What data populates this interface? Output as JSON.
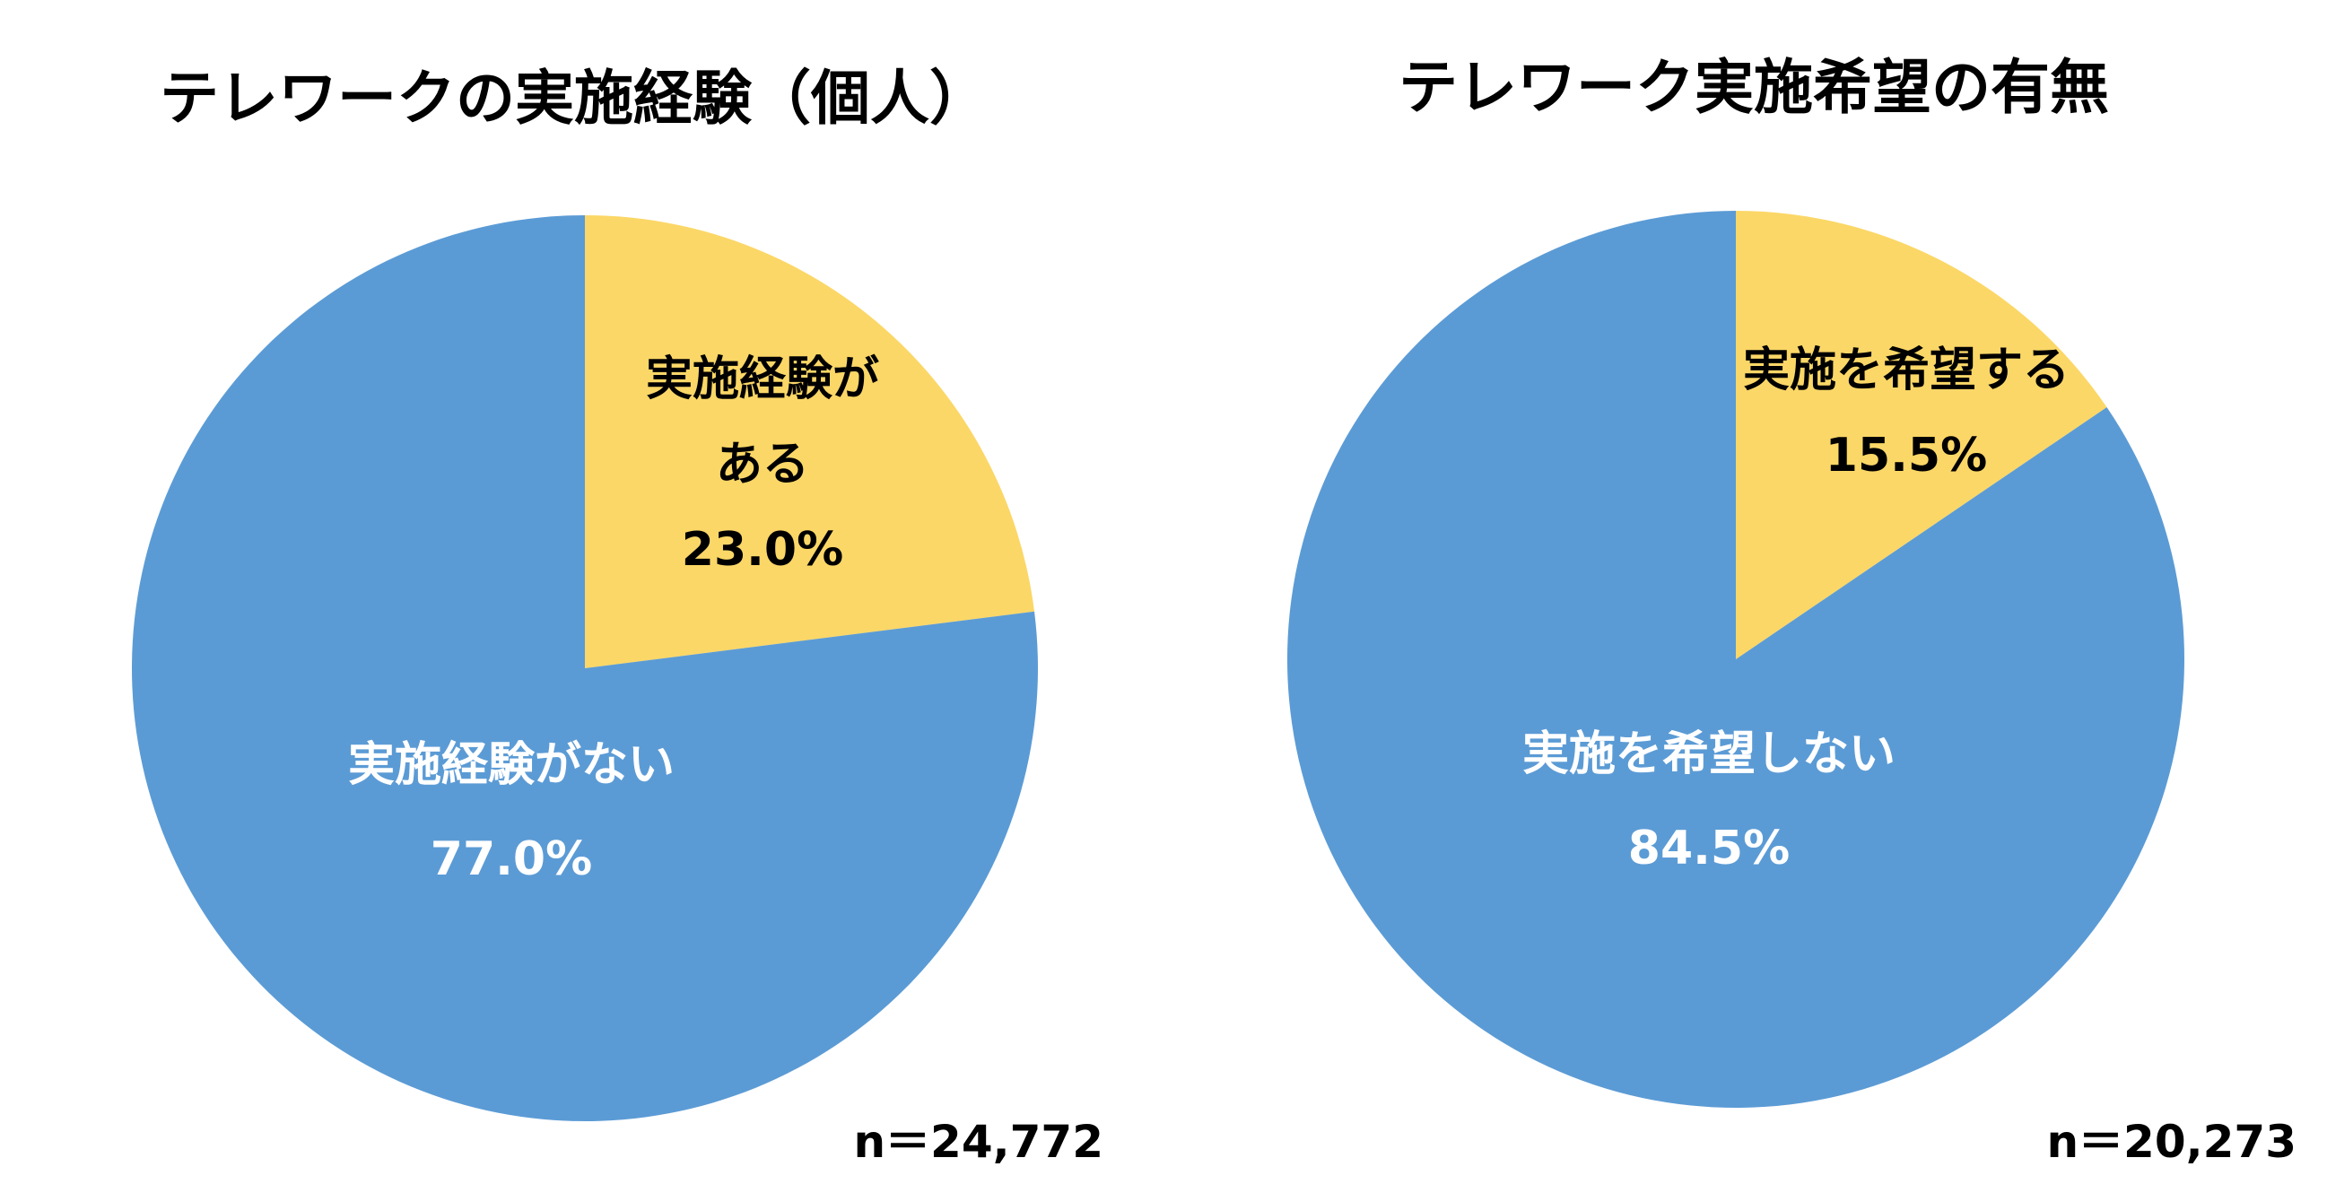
{
  "chart_data": [
    {
      "type": "pie",
      "title": "テレワークの実施経験（個人）",
      "slices": [
        {
          "label": "実施経験がある",
          "label_lines": [
            "実施経験が",
            "ある",
            "23.0%"
          ],
          "value": 23.0,
          "color": "#FBD767",
          "text_color": "#000000"
        },
        {
          "label": "実施経験がない",
          "label_lines": [
            "実施経験がない",
            "77.0%"
          ],
          "value": 77.0,
          "color": "#5B9BD5",
          "text_color": "#FFFFFF"
        }
      ],
      "start_angle": "12 o'clock",
      "direction": "clockwise",
      "legend": "none",
      "note": "n＝24,772"
    },
    {
      "type": "pie",
      "title": "テレワーク実施希望の有無",
      "slices": [
        {
          "label": "実施を希望する",
          "label_lines": [
            "実施を希望する",
            "15.5%"
          ],
          "value": 15.5,
          "color": "#FBD767",
          "text_color": "#000000"
        },
        {
          "label": "実施を希望しない",
          "label_lines": [
            "実施を希望しない",
            "84.5%"
          ],
          "value": 84.5,
          "color": "#5B9BD5",
          "text_color": "#FFFFFF"
        }
      ],
      "start_angle": "12 o'clock",
      "direction": "clockwise",
      "legend": "none",
      "note": "n＝20,273"
    }
  ]
}
